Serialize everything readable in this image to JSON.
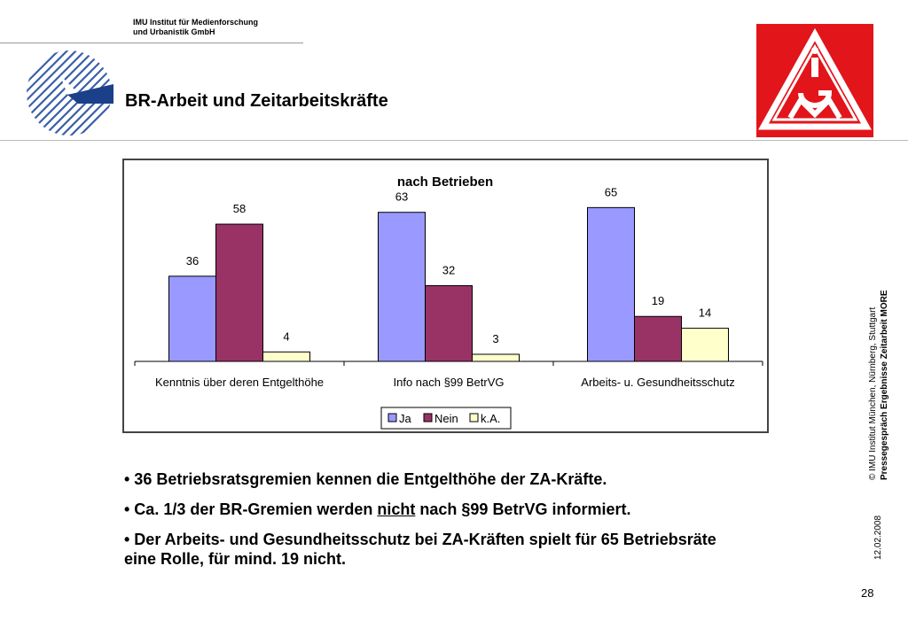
{
  "header": {
    "org_line1": "IMU Institut für Medienforschung",
    "org_line2": "und Urbanistik GmbH",
    "title": "BR-Arbeit und Zeitarbeitskräfte",
    "logo_left_icon": "imu-logo-icon",
    "logo_right_icon": "igm-logo-icon",
    "logo_right_text": "IGM"
  },
  "chart_data": {
    "type": "bar",
    "title": "nach Betrieben",
    "categories": [
      "Kenntnis über deren Entgelthöhe",
      "Info nach §99 BetrVG",
      "Arbeits- u. Gesundheitsschutz"
    ],
    "series": [
      {
        "name": "Ja",
        "values": [
          36,
          63,
          65
        ],
        "color": "#9999ff"
      },
      {
        "name": "Nein",
        "values": [
          58,
          32,
          19
        ],
        "color": "#993366"
      },
      {
        "name": "k.A.",
        "values": [
          4,
          3,
          14
        ],
        "color": "#ffffcc"
      }
    ],
    "ylim": [
      0,
      70
    ],
    "grid": false,
    "legend": "bottom"
  },
  "bullets": {
    "b1": "• 36 Betriebsratsgremien kennen die Entgelthöhe der ZA-Kräfte.",
    "b2_pre": "• Ca. 1/3 der BR-Gremien werden ",
    "b2_u": "nicht",
    "b2_post": " nach §99 BetrVG informiert.",
    "b3": "• Der Arbeits- und Gesundheitsschutz bei ZA-Kräften spielt für 65 Betriebsräte eine Rolle, für mind. 19 nicht."
  },
  "sidebar": {
    "line1": "© IMU Institut München, Nürnberg, Stuttgart",
    "line2": "Pressegespräch Ergebnisse Zeitarbeit MORE",
    "date": "12.02.2008"
  },
  "footer": {
    "page_number": "28"
  },
  "colors": {
    "igm_red": "#e2151b",
    "imu_blue": "#3a5fa8"
  }
}
